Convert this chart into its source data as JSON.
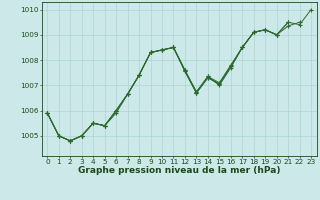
{
  "x": [
    0,
    1,
    2,
    3,
    4,
    5,
    6,
    7,
    8,
    9,
    10,
    11,
    12,
    13,
    14,
    15,
    16,
    17,
    18,
    19,
    20,
    21,
    22,
    23
  ],
  "series": [
    [
      1005.9,
      1005.0,
      1004.8,
      1005.0,
      1005.5,
      1005.4,
      1005.9,
      1006.65,
      1007.4,
      1008.3,
      1008.4,
      1008.5,
      1007.6,
      1006.7,
      1007.35,
      1007.0,
      1007.7,
      1008.5,
      1009.1,
      1009.2,
      1009.0,
      1009.5,
      1009.4,
      1010.0
    ],
    [
      1005.9,
      1005.0,
      1004.8,
      1005.0,
      1005.5,
      1005.4,
      1006.0,
      1006.65,
      1007.4,
      1008.3,
      1008.4,
      1008.5,
      1007.6,
      1006.75,
      1007.35,
      1007.1,
      1007.8,
      1008.5,
      1009.1,
      1009.2,
      1009.0,
      1009.5,
      null,
      null
    ],
    [
      1005.9,
      1005.0,
      1004.8,
      1005.0,
      1005.5,
      1005.4,
      1006.0,
      1006.65,
      1007.4,
      1008.3,
      1008.4,
      1008.5,
      1007.55,
      1006.7,
      1007.3,
      1007.05,
      1007.75,
      1008.5,
      1009.1,
      1009.2,
      1009.0,
      null,
      null,
      null
    ],
    [
      1005.9,
      1005.0,
      1004.8,
      1005.0,
      1005.5,
      1005.4,
      1006.0,
      1006.65,
      1007.4,
      1008.3,
      1008.4,
      1008.5,
      1007.55,
      1006.7,
      1007.3,
      1007.05,
      1007.75,
      1008.5,
      1009.1,
      1009.2,
      1009.0,
      1009.35,
      1009.5,
      null
    ]
  ],
  "line_color": "#2d6a2d",
  "background_color": "#cce8e8",
  "grid_color": "#aad4d4",
  "xlabel": "Graphe pression niveau de la mer (hPa)",
  "ylim": [
    1004.2,
    1010.3
  ],
  "yticks": [
    1005,
    1006,
    1007,
    1008,
    1009,
    1010
  ],
  "xlim": [
    -0.5,
    23.5
  ],
  "label_color": "#1a4a1a",
  "tick_fontsize": 5.2,
  "xlabel_fontsize": 6.5
}
